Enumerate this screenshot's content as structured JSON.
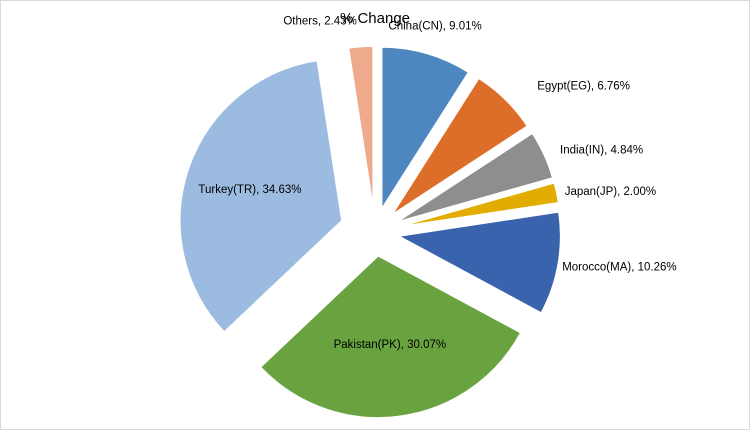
{
  "chart_data": {
    "type": "pie",
    "title": "% Change",
    "slices": [
      {
        "name": "China(CN)",
        "value": 9.01,
        "value_label": "9.01%",
        "color": "#4e86c0"
      },
      {
        "name": "Egypt(EG)",
        "value": 6.76,
        "value_label": "6.76%",
        "color": "#dd6e2a"
      },
      {
        "name": "India(IN)",
        "value": 4.84,
        "value_label": "4.84%",
        "color": "#8e8e8e"
      },
      {
        "name": "Japan(JP)",
        "value": 2.0,
        "value_label": "2.00%",
        "color": "#e2ad00"
      },
      {
        "name": "Morocco(MA)",
        "value": 10.26,
        "value_label": "10.26%",
        "color": "#3a63ad"
      },
      {
        "name": "Pakistan(PK)",
        "value": 30.07,
        "value_label": "30.07%",
        "color": "#69a33f"
      },
      {
        "name": "Turkey(TR)",
        "value": 34.63,
        "value_label": "34.63%",
        "color": "#9bbbe0"
      },
      {
        "name": "Others",
        "value": 2.43,
        "value_label": "2.43%",
        "color": "#efa98c"
      }
    ],
    "legend": "none"
  }
}
